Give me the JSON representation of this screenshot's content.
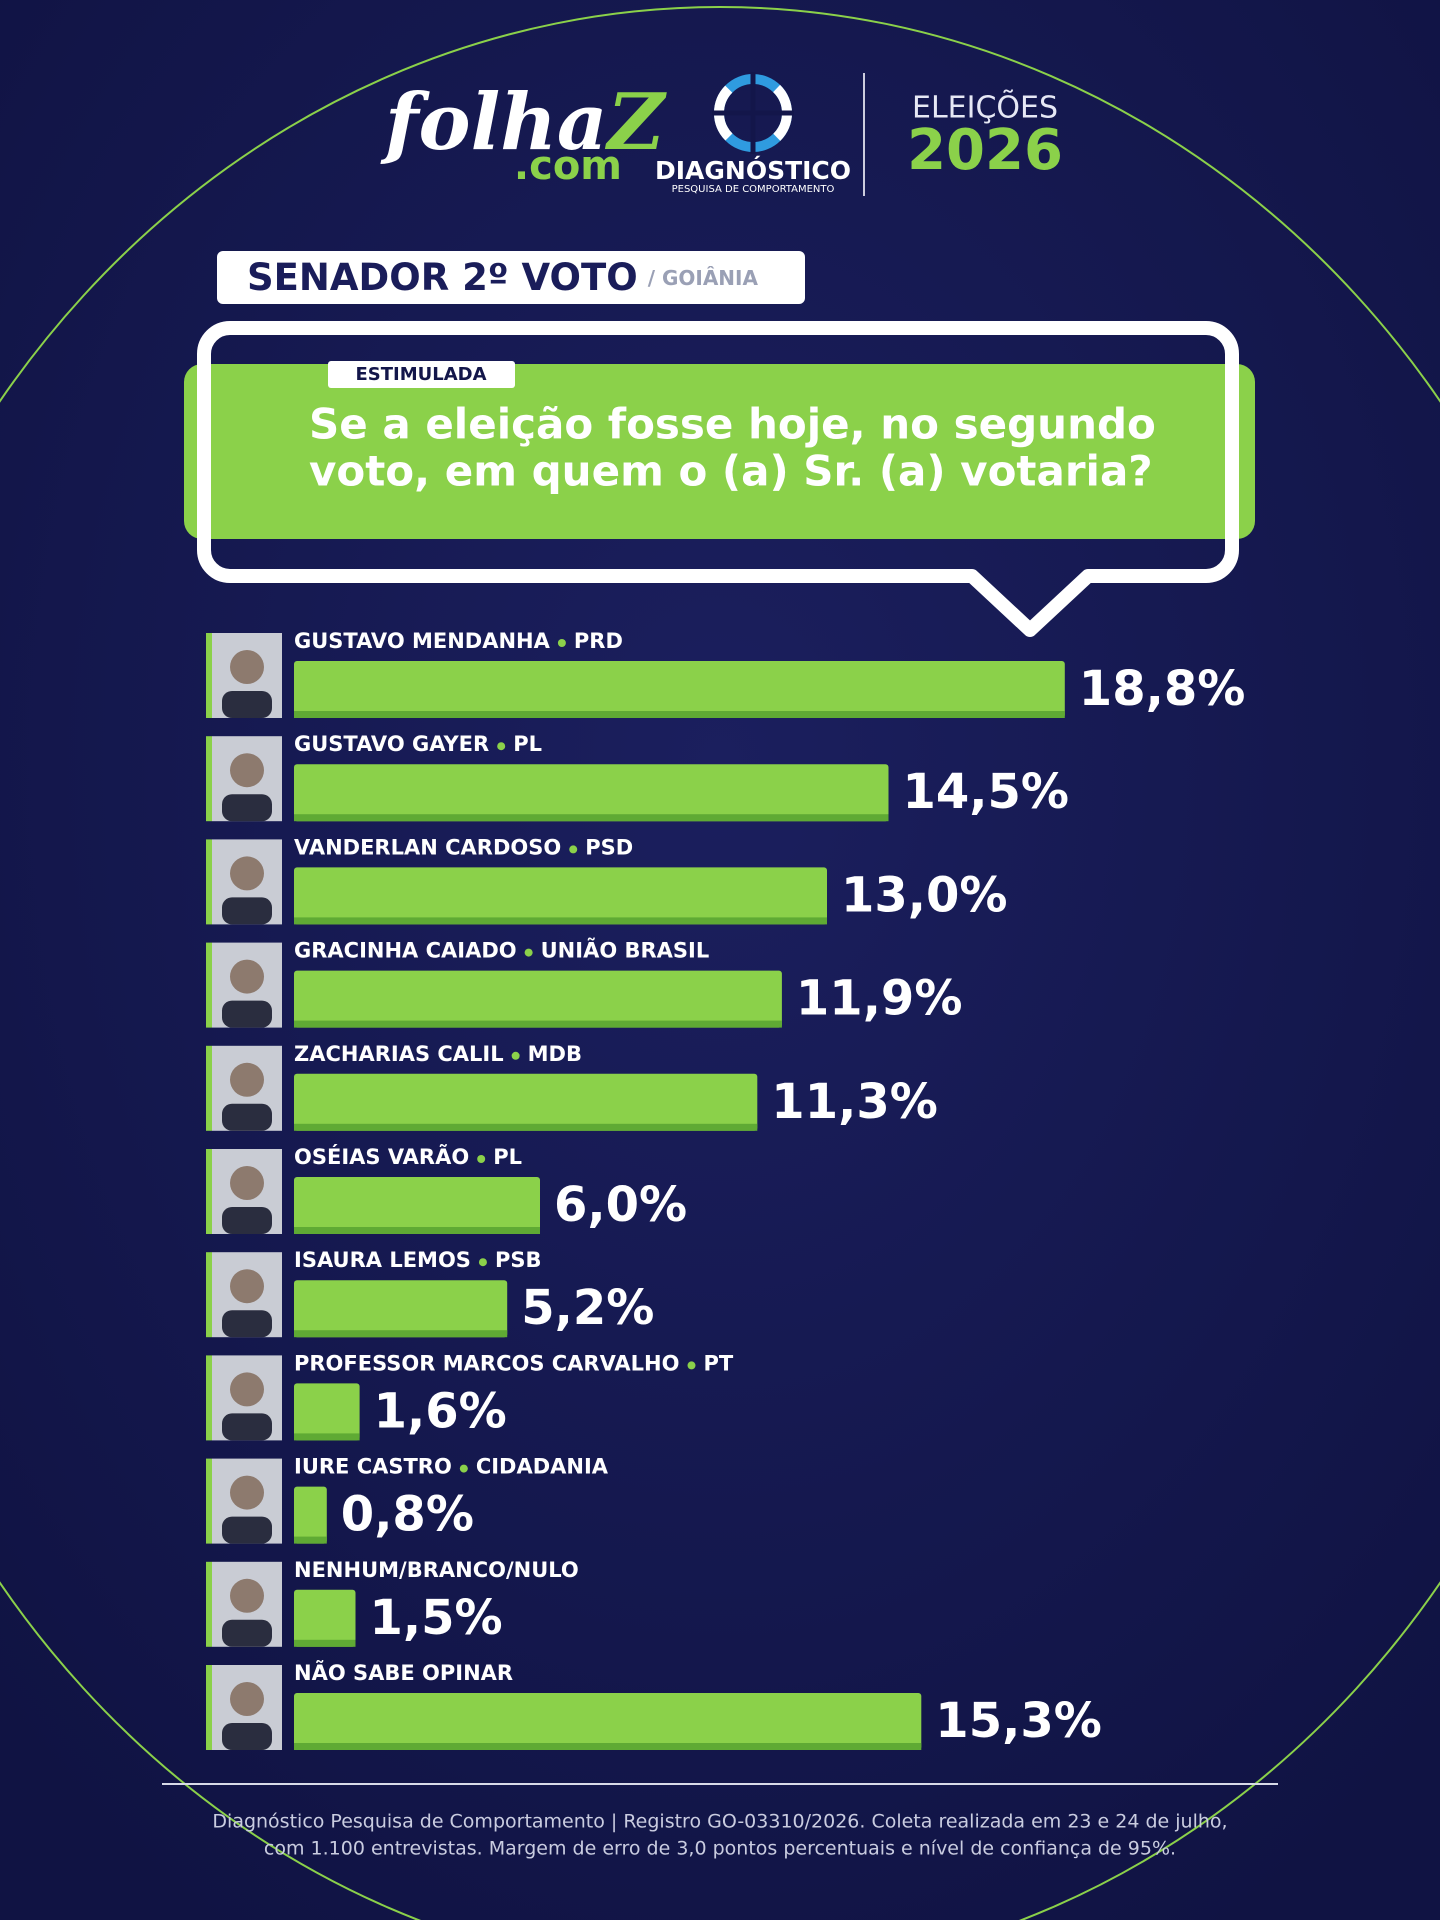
{
  "header": {
    "logo": "folha",
    "logo_z": "Z",
    "logo_com": ".com",
    "institute": "DIAGNÓSTICO",
    "institute_sub": "PESQUISA DE COMPORTAMENTO",
    "election": "ELEIÇÕES",
    "year": "2026"
  },
  "chart_data": {
    "type": "bar",
    "orientation": "horizontal",
    "title": "SENADOR 2º VOTO",
    "subtitle": "/ GOIÂNIA",
    "badge": "ESTIMULADA",
    "question": [
      "Se a eleição fosse hoje, no segundo",
      "voto, em quem o (a) Sr. (a) votaria?"
    ],
    "categories": [
      "GUSTAVO MENDANHA",
      "GUSTAVO GAYER",
      "VANDERLAN CARDOSO",
      "GRACINHA CAIADO",
      "ZACHARIAS CALIL",
      "OSÉIAS VARÃO",
      "ISAURA LEMOS",
      "PROFESSOR MARCOS CARVALHO",
      "IURE CASTRO",
      "NENHUM/BRANCO/NULO",
      "NÃO SABE OPINAR"
    ],
    "parties": [
      "PRD",
      "PL",
      "PSD",
      "UNIÃO BRASIL",
      "MDB",
      "PL",
      "PSB",
      "PT",
      "CIDADANIA",
      null,
      null
    ],
    "values": [
      18.8,
      14.5,
      13.0,
      11.9,
      11.3,
      6.0,
      5.2,
      1.6,
      0.8,
      1.5,
      15.3
    ],
    "value_labels": [
      "18,8%",
      "14,5%",
      "13,0%",
      "11,9%",
      "11,3%",
      "6,0%",
      "5,2%",
      "1,6%",
      "0,8%",
      "1,5%",
      "15,3%"
    ],
    "color": "#8bd14a"
  },
  "footer": [
    "Diagnóstico Pesquisa de Comportamento | Registro GO-03310/2026. Coleta realizada em 23 e 24 de julho,",
    "com 1.100 entrevistas. Margem de erro de 3,0 pontos percentuais e nível de confiança de 95%."
  ]
}
